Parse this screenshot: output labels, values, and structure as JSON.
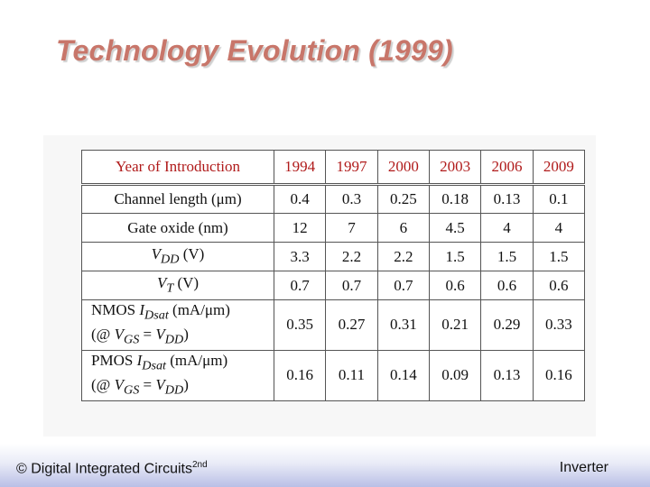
{
  "title": "Technology Evolution (1999)",
  "table": {
    "header": {
      "label": "Year of Introduction",
      "years": [
        "1994",
        "1997",
        "2000",
        "2003",
        "2006",
        "2009"
      ]
    },
    "rows": [
      {
        "label": "Channel length (μm)",
        "values": [
          "0.4",
          "0.3",
          "0.25",
          "0.18",
          "0.13",
          "0.1"
        ]
      },
      {
        "label": "Gate oxide (nm)",
        "values": [
          "12",
          "7",
          "6",
          "4.5",
          "4",
          "4"
        ]
      },
      {
        "label_main": "V",
        "label_sub": "DD",
        "label_unit": " (V)",
        "values": [
          "3.3",
          "2.2",
          "2.2",
          "1.5",
          "1.5",
          "1.5"
        ]
      },
      {
        "label_main": "V",
        "label_sub": "T",
        "label_unit": " (V)",
        "values": [
          "0.7",
          "0.7",
          "0.7",
          "0.6",
          "0.6",
          "0.6"
        ]
      },
      {
        "label_l1_pre": "NMOS ",
        "label_l1_main": "I",
        "label_l1_sub": "Dsat",
        "label_l1_unit": " (mA/μm)",
        "label_l2_pre": "(@ ",
        "label_l2_v1": "V",
        "label_l2_s1": "GS",
        "label_l2_eq": " = ",
        "label_l2_v2": "V",
        "label_l2_s2": "DD",
        "label_l2_post": ")",
        "values": [
          "0.35",
          "0.27",
          "0.31",
          "0.21",
          "0.29",
          "0.33"
        ]
      },
      {
        "label_l1_pre": "PMOS ",
        "label_l1_main": "I",
        "label_l1_sub": "Dsat",
        "label_l1_unit": " (mA/μm)",
        "label_l2_pre": "(@ ",
        "label_l2_v1": "V",
        "label_l2_s1": "GS",
        "label_l2_eq": " = ",
        "label_l2_v2": "V",
        "label_l2_s2": "DD",
        "label_l2_post": ")",
        "values": [
          "0.16",
          "0.11",
          "0.14",
          "0.09",
          "0.13",
          "0.16"
        ]
      }
    ]
  },
  "footer": {
    "left": "© Digital Integrated Circuits",
    "left_sup": "2nd",
    "right": "Inverter"
  },
  "colors": {
    "title": "#c8766a",
    "header_text": "#b01a1a",
    "footer_band": "#b9bfe6"
  }
}
